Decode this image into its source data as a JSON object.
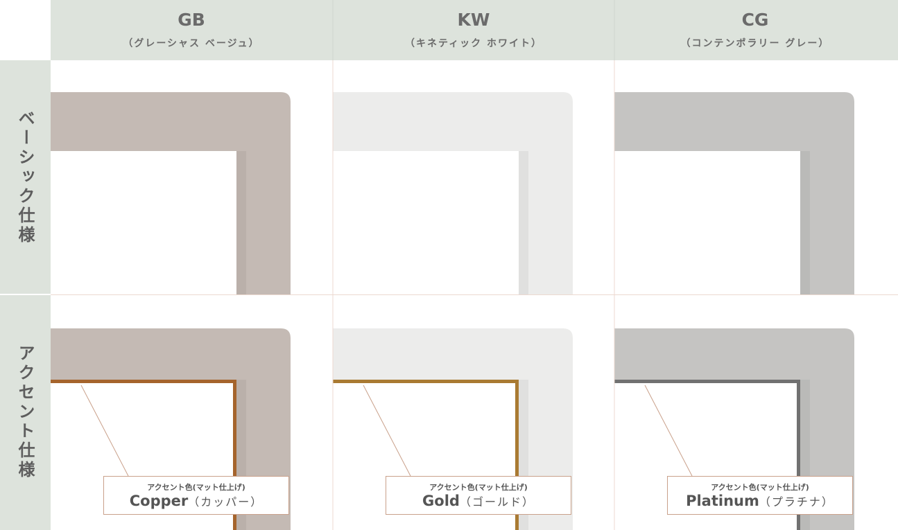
{
  "columns": [
    {
      "code": "GB",
      "name": "（グレーシャス ベージュ）"
    },
    {
      "code": "KW",
      "name": "（キネティック ホワイト）"
    },
    {
      "code": "CG",
      "name": "（コンテンポラリー グレー）"
    }
  ],
  "rows": [
    "ベーシック仕様",
    "アクセント仕様"
  ],
  "accents": [
    {
      "label": "アクセント色(マット仕上げ)",
      "name": "Copper",
      "kana": "（カッパー）"
    },
    {
      "label": "アクセント色(マット仕上げ)",
      "name": "Gold",
      "kana": "（ゴールド）"
    },
    {
      "label": "アクセント色(マット仕上げ)",
      "name": "Platinum",
      "kana": "（プラチナ）"
    }
  ]
}
